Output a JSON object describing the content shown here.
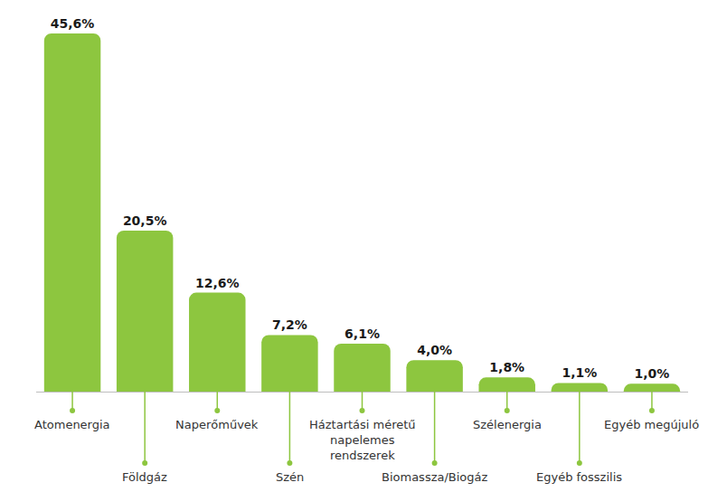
{
  "chart_data": {
    "type": "bar",
    "categories": [
      "Atomenergia",
      "Földgáz",
      "Naperőművek",
      "Szén",
      "Háztartási méretű napelemes rendszerek",
      "Biomassza/Biogáz",
      "Szélenergia",
      "Egyéb fosszilis",
      "Egyéb megújuló"
    ],
    "values": [
      45.6,
      20.5,
      12.6,
      7.2,
      6.1,
      4.0,
      1.8,
      1.1,
      1.0
    ],
    "value_labels": [
      "45,6%",
      "20,5%",
      "12,6%",
      "7,2%",
      "6,1%",
      "4,0%",
      "1,8%",
      "1,1%",
      "1,0%"
    ],
    "color": "#8dc63f",
    "ylim": [
      0,
      45.6
    ],
    "yticks": [],
    "grid": false,
    "data_labels": true,
    "tick_labels": "x"
  }
}
